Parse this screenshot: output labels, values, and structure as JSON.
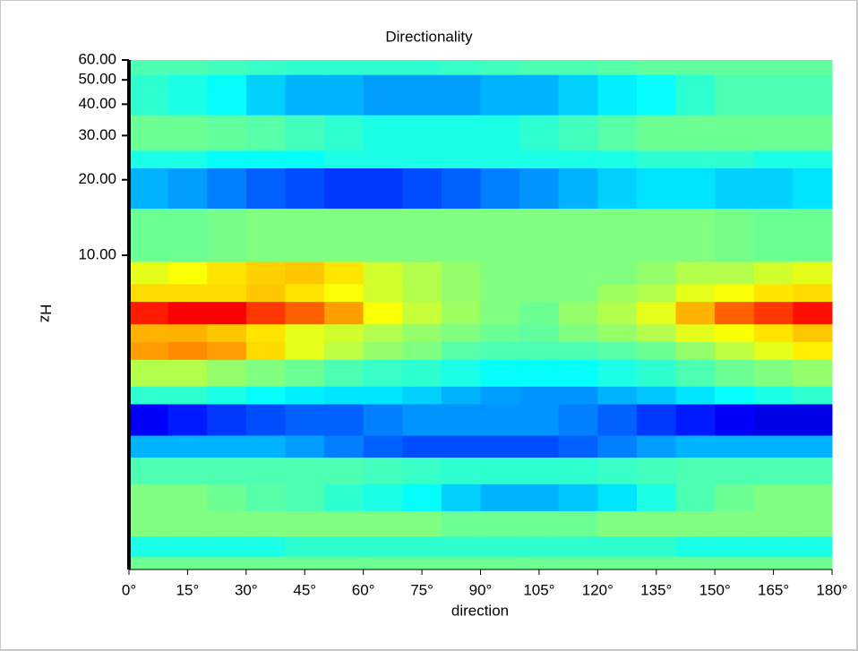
{
  "chart_data": {
    "type": "heatmap",
    "title": "Directionality",
    "xlabel": "direction",
    "ylabel": "Hz",
    "colormap": "jet",
    "title_color": "#1a1acc",
    "xbins": [
      0,
      10,
      20,
      30,
      40,
      50,
      60,
      70,
      80,
      90,
      100,
      110,
      120,
      130,
      140,
      150,
      160,
      170,
      180
    ],
    "ybins": [
      0.56,
      0.63,
      0.76,
      0.96,
      1.23,
      1.57,
      1.92,
      2.56,
      3.01,
      3.85,
      4.53,
      5.33,
      6.55,
      7.7,
      9.45,
      15.4,
      22.3,
      26.2,
      36.3,
      52.5,
      60
    ],
    "z": [
      [
        0.48,
        0.48,
        0.48,
        0.48,
        0.48,
        0.48,
        0.48,
        0.48,
        0.48,
        0.48,
        0.48,
        0.48,
        0.48,
        0.48,
        0.48,
        0.48,
        0.48,
        0.48
      ],
      [
        0.4,
        0.4,
        0.4,
        0.4,
        0.42,
        0.42,
        0.42,
        0.42,
        0.42,
        0.42,
        0.42,
        0.42,
        0.42,
        0.42,
        0.4,
        0.4,
        0.4,
        0.4
      ],
      [
        0.5,
        0.5,
        0.5,
        0.5,
        0.5,
        0.5,
        0.5,
        0.5,
        0.48,
        0.48,
        0.48,
        0.48,
        0.5,
        0.5,
        0.5,
        0.5,
        0.5,
        0.5
      ],
      [
        0.5,
        0.5,
        0.48,
        0.46,
        0.45,
        0.42,
        0.4,
        0.38,
        0.33,
        0.3,
        0.3,
        0.32,
        0.35,
        0.4,
        0.45,
        0.48,
        0.5,
        0.5
      ],
      [
        0.45,
        0.45,
        0.45,
        0.45,
        0.45,
        0.45,
        0.44,
        0.43,
        0.42,
        0.42,
        0.42,
        0.42,
        0.43,
        0.44,
        0.45,
        0.45,
        0.45,
        0.45
      ],
      [
        0.3,
        0.3,
        0.3,
        0.3,
        0.28,
        0.25,
        0.22,
        0.2,
        0.2,
        0.2,
        0.2,
        0.22,
        0.25,
        0.28,
        0.3,
        0.3,
        0.3,
        0.3
      ],
      [
        0.12,
        0.15,
        0.18,
        0.2,
        0.22,
        0.22,
        0.25,
        0.27,
        0.27,
        0.27,
        0.27,
        0.25,
        0.22,
        0.18,
        0.15,
        0.12,
        0.1,
        0.1
      ],
      [
        0.42,
        0.42,
        0.4,
        0.38,
        0.36,
        0.35,
        0.35,
        0.33,
        0.3,
        0.28,
        0.27,
        0.27,
        0.3,
        0.32,
        0.35,
        0.38,
        0.4,
        0.42
      ],
      [
        0.55,
        0.55,
        0.52,
        0.5,
        0.48,
        0.45,
        0.43,
        0.42,
        0.4,
        0.38,
        0.38,
        0.38,
        0.4,
        0.42,
        0.45,
        0.48,
        0.5,
        0.52
      ],
      [
        0.72,
        0.74,
        0.72,
        0.66,
        0.6,
        0.56,
        0.52,
        0.5,
        0.46,
        0.45,
        0.45,
        0.45,
        0.46,
        0.48,
        0.52,
        0.56,
        0.6,
        0.64
      ],
      [
        0.7,
        0.7,
        0.68,
        0.65,
        0.6,
        0.58,
        0.55,
        0.52,
        0.5,
        0.48,
        0.47,
        0.5,
        0.52,
        0.55,
        0.6,
        0.62,
        0.65,
        0.68
      ],
      [
        0.85,
        0.88,
        0.88,
        0.82,
        0.78,
        0.72,
        0.62,
        0.57,
        0.53,
        0.5,
        0.48,
        0.52,
        0.55,
        0.6,
        0.7,
        0.78,
        0.82,
        0.86
      ],
      [
        0.66,
        0.66,
        0.66,
        0.68,
        0.65,
        0.62,
        0.58,
        0.55,
        0.52,
        0.5,
        0.5,
        0.5,
        0.53,
        0.55,
        0.6,
        0.62,
        0.65,
        0.66
      ],
      [
        0.6,
        0.62,
        0.65,
        0.67,
        0.68,
        0.65,
        0.58,
        0.55,
        0.52,
        0.5,
        0.5,
        0.5,
        0.5,
        0.52,
        0.55,
        0.55,
        0.58,
        0.6
      ],
      [
        0.48,
        0.48,
        0.49,
        0.5,
        0.5,
        0.5,
        0.5,
        0.5,
        0.5,
        0.5,
        0.5,
        0.5,
        0.5,
        0.5,
        0.5,
        0.49,
        0.48,
        0.48
      ],
      [
        0.3,
        0.28,
        0.25,
        0.22,
        0.2,
        0.18,
        0.18,
        0.2,
        0.22,
        0.25,
        0.27,
        0.3,
        0.33,
        0.35,
        0.35,
        0.33,
        0.33,
        0.35
      ],
      [
        0.4,
        0.4,
        0.38,
        0.38,
        0.38,
        0.4,
        0.4,
        0.4,
        0.4,
        0.4,
        0.4,
        0.4,
        0.4,
        0.42,
        0.42,
        0.42,
        0.4,
        0.4
      ],
      [
        0.48,
        0.48,
        0.47,
        0.46,
        0.44,
        0.42,
        0.4,
        0.4,
        0.4,
        0.4,
        0.42,
        0.44,
        0.46,
        0.48,
        0.48,
        0.48,
        0.48,
        0.48
      ],
      [
        0.42,
        0.4,
        0.38,
        0.33,
        0.3,
        0.3,
        0.28,
        0.28,
        0.28,
        0.3,
        0.3,
        0.33,
        0.36,
        0.38,
        0.42,
        0.45,
        0.45,
        0.45
      ],
      [
        0.45,
        0.45,
        0.44,
        0.43,
        0.42,
        0.42,
        0.42,
        0.42,
        0.43,
        0.44,
        0.45,
        0.45,
        0.46,
        0.47,
        0.47,
        0.47,
        0.47,
        0.47
      ]
    ],
    "xlim": [
      0,
      180
    ],
    "xticks": [
      {
        "value": 0,
        "label": "0°"
      },
      {
        "value": 15,
        "label": "15°"
      },
      {
        "value": 30,
        "label": "30°"
      },
      {
        "value": 45,
        "label": "45°"
      },
      {
        "value": 60,
        "label": "60°"
      },
      {
        "value": 75,
        "label": "75°"
      },
      {
        "value": 90,
        "label": "90°"
      },
      {
        "value": 105,
        "label": "105°"
      },
      {
        "value": 120,
        "label": "120°"
      },
      {
        "value": 135,
        "label": "135°"
      },
      {
        "value": 150,
        "label": "150°"
      },
      {
        "value": 165,
        "label": "165°"
      },
      {
        "value": 180,
        "label": "180°"
      }
    ],
    "ylim": [
      0.56,
      60
    ],
    "ylog": true,
    "yticks": [
      {
        "value": 10,
        "label": "10.00"
      },
      {
        "value": 20,
        "label": "20.00"
      },
      {
        "value": 30,
        "label": "30.00"
      },
      {
        "value": 40,
        "label": "40.00"
      },
      {
        "value": 50,
        "label": "50.00"
      },
      {
        "value": 60,
        "label": "60.00"
      }
    ]
  }
}
